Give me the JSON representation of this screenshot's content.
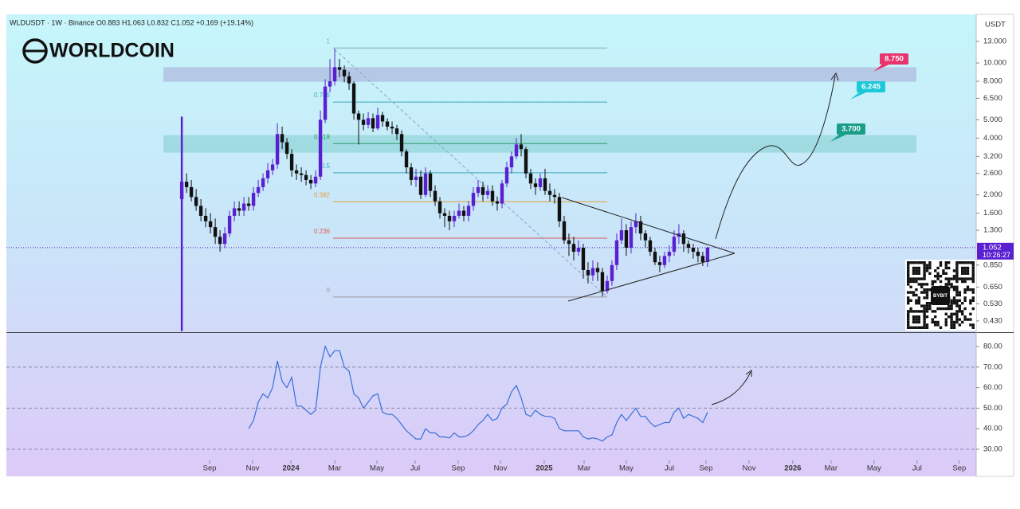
{
  "chart_data": {
    "type": "candlestick",
    "legend_text": "WLDUSDT · 1W · Binance  O0.883 H1.063 L0.832 C1.052 +0.169 (+19.14%)",
    "logo_text": "WORLDCOIN",
    "currency": "USDT",
    "log_scale": true,
    "up_color": "#5a1fd1",
    "down_color": "#111111",
    "ylim": [
      0.375,
      18.1
    ],
    "yticks": [
      {
        "value": 13,
        "label": "13.000"
      },
      {
        "value": 10,
        "label": "10.000"
      },
      {
        "value": 8,
        "label": "8.000"
      },
      {
        "value": 6.5,
        "label": "6.500"
      },
      {
        "value": 5,
        "label": "5.000"
      },
      {
        "value": 4,
        "label": "4.000"
      },
      {
        "value": 3.2,
        "label": "3.200"
      },
      {
        "value": 2.6,
        "label": "2.600"
      },
      {
        "value": 2,
        "label": "2.000"
      },
      {
        "value": 1.6,
        "label": "1.600"
      },
      {
        "value": 1.3,
        "label": "1.300"
      },
      {
        "value": 0.85,
        "label": "0.850"
      },
      {
        "value": 0.65,
        "label": "0.650"
      },
      {
        "value": 0.53,
        "label": "0.530"
      },
      {
        "value": 0.43,
        "label": "0.430"
      }
    ],
    "xlim": [
      -36.7,
      166.2
    ],
    "xticks": [
      {
        "value": 5.83,
        "label": "Sep"
      },
      {
        "value": 14.83,
        "label": "Nov"
      },
      {
        "value": 22.83,
        "label": "2024"
      },
      {
        "value": 32,
        "label": "Mar"
      },
      {
        "value": 40.83,
        "label": "May"
      },
      {
        "value": 48.83,
        "label": "Jul"
      },
      {
        "value": 57.83,
        "label": "Sep"
      },
      {
        "value": 66.67,
        "label": "Nov"
      },
      {
        "value": 75.83,
        "label": "2025"
      },
      {
        "value": 84.17,
        "label": "Mar"
      },
      {
        "value": 93,
        "label": "May"
      },
      {
        "value": 102,
        "label": "Jul"
      },
      {
        "value": 109.67,
        "label": "Sep"
      },
      {
        "value": 118.67,
        "label": "Nov"
      },
      {
        "value": 127.83,
        "label": "2026"
      },
      {
        "value": 135.83,
        "label": "Mar"
      },
      {
        "value": 144.83,
        "label": "May"
      },
      {
        "value": 153.83,
        "label": "Jul"
      },
      {
        "value": 162.67,
        "label": "Sep"
      }
    ],
    "last_price": {
      "value": 1.052,
      "countdown": "10:26:27",
      "color": "#5a1fd1"
    },
    "candles": {
      "open": [
        1.9,
        2.35,
        2.2,
        1.95,
        1.75,
        1.55,
        1.45,
        1.35,
        1.2,
        1.1,
        1.25,
        1.55,
        1.7,
        1.65,
        1.8,
        1.75,
        2.05,
        2.2,
        2.45,
        2.7,
        2.9,
        4.2,
        3.8,
        3.3,
        2.7,
        2.6,
        2.55,
        2.4,
        2.3,
        2.5,
        5.0,
        7.5,
        8.0,
        9.5,
        9.2,
        8.5,
        7.8,
        5.4,
        5.0,
        4.7,
        5.1,
        4.5,
        5.3,
        4.9,
        4.6,
        4.5,
        4.2,
        3.4,
        2.8,
        2.4,
        2.5,
        2.0,
        2.6,
        2.1,
        1.85,
        1.6,
        1.55,
        1.45,
        1.55,
        1.65,
        1.55,
        1.75,
        2.05,
        2.2,
        2.0,
        2.1,
        1.85,
        1.8,
        2.3,
        2.8,
        3.2,
        3.7,
        3.5,
        2.6,
        2.3,
        2.2,
        2.45,
        2.1,
        2.0,
        1.95,
        1.45,
        1.15,
        1.1,
        1.0,
        1.05,
        0.8,
        0.75,
        0.82,
        0.78,
        0.62,
        0.7,
        0.85,
        1.15,
        1.3,
        1.05,
        1.35,
        1.45,
        1.25,
        1.15,
        1.0,
        0.88,
        0.85,
        0.95,
        1.0,
        1.2,
        1.25,
        1.1,
        1.05,
        1.0,
        0.95,
        0.883
      ],
      "high": [
        5.2,
        2.6,
        2.4,
        2.15,
        1.9,
        1.7,
        1.6,
        1.5,
        1.3,
        1.35,
        1.65,
        1.85,
        1.85,
        1.95,
        1.95,
        2.2,
        2.4,
        2.6,
        2.95,
        3.1,
        4.8,
        4.6,
        4.0,
        3.5,
        2.9,
        2.8,
        2.7,
        2.55,
        2.7,
        5.6,
        8.2,
        10.5,
        11.9,
        10.5,
        9.7,
        9.0,
        8.0,
        5.6,
        5.4,
        5.5,
        5.4,
        5.8,
        5.5,
        5.1,
        4.9,
        4.7,
        4.4,
        3.5,
        2.95,
        2.75,
        2.7,
        2.8,
        2.7,
        2.25,
        1.95,
        1.7,
        1.65,
        1.65,
        1.8,
        1.75,
        1.85,
        2.2,
        2.4,
        2.35,
        2.25,
        2.25,
        1.95,
        2.4,
        3.0,
        3.4,
        4.0,
        4.2,
        3.6,
        2.75,
        2.45,
        2.6,
        2.75,
        2.3,
        2.15,
        2.05,
        1.55,
        1.25,
        1.2,
        1.15,
        1.1,
        0.88,
        0.9,
        0.88,
        0.82,
        0.75,
        0.9,
        1.25,
        1.5,
        1.4,
        1.45,
        1.6,
        1.55,
        1.3,
        1.2,
        1.05,
        0.95,
        1.0,
        1.08,
        1.3,
        1.4,
        1.3,
        1.15,
        1.1,
        1.05,
        1.0,
        1.063
      ],
      "low": [
        0.38,
        2.05,
        1.85,
        1.65,
        1.45,
        1.35,
        1.25,
        1.1,
        1.0,
        1.05,
        1.2,
        1.45,
        1.55,
        1.55,
        1.65,
        1.65,
        1.95,
        2.1,
        2.3,
        2.55,
        2.75,
        3.5,
        3.1,
        2.5,
        2.4,
        2.35,
        2.25,
        2.15,
        2.2,
        2.4,
        4.8,
        7.0,
        7.6,
        8.4,
        7.9,
        7.2,
        5.0,
        3.7,
        4.4,
        4.5,
        4.3,
        4.4,
        4.6,
        4.4,
        4.2,
        3.9,
        3.2,
        2.6,
        2.25,
        2.2,
        1.9,
        1.95,
        1.95,
        1.75,
        1.5,
        1.35,
        1.3,
        1.35,
        1.5,
        1.45,
        1.45,
        1.65,
        1.95,
        1.85,
        1.9,
        1.75,
        1.65,
        1.7,
        2.2,
        2.6,
        3.1,
        3.2,
        2.45,
        2.15,
        2.0,
        2.1,
        2.0,
        1.85,
        1.8,
        1.35,
        1.1,
        0.95,
        0.9,
        0.95,
        0.72,
        0.68,
        0.7,
        0.7,
        0.58,
        0.6,
        0.66,
        0.8,
        1.1,
        0.95,
        0.98,
        1.25,
        1.15,
        1.05,
        0.95,
        0.85,
        0.78,
        0.82,
        0.88,
        0.95,
        1.1,
        1.0,
        0.98,
        0.92,
        0.88,
        0.84,
        0.832
      ],
      "close": [
        2.35,
        2.2,
        1.95,
        1.75,
        1.55,
        1.45,
        1.35,
        1.2,
        1.1,
        1.25,
        1.55,
        1.7,
        1.65,
        1.8,
        1.75,
        2.05,
        2.2,
        2.45,
        2.7,
        2.9,
        4.2,
        3.8,
        3.3,
        2.7,
        2.6,
        2.55,
        2.4,
        2.3,
        2.5,
        5.0,
        7.5,
        8.0,
        9.5,
        9.2,
        8.5,
        7.8,
        5.4,
        5.0,
        4.7,
        5.1,
        4.5,
        5.3,
        4.9,
        4.6,
        4.5,
        4.2,
        3.4,
        2.8,
        2.4,
        2.5,
        2.0,
        2.6,
        2.1,
        1.85,
        1.6,
        1.55,
        1.45,
        1.55,
        1.65,
        1.55,
        1.75,
        2.05,
        2.2,
        2.0,
        2.1,
        1.85,
        1.8,
        2.3,
        2.8,
        3.2,
        3.7,
        3.5,
        2.6,
        2.3,
        2.2,
        2.45,
        2.1,
        2.0,
        1.95,
        1.45,
        1.15,
        1.1,
        1.0,
        1.05,
        0.8,
        0.75,
        0.82,
        0.78,
        0.62,
        0.7,
        0.85,
        1.15,
        1.3,
        1.05,
        1.35,
        1.45,
        1.25,
        1.15,
        1.0,
        0.88,
        0.85,
        0.95,
        1.0,
        1.2,
        1.25,
        1.1,
        1.05,
        1.0,
        0.95,
        0.883,
        1.052
      ]
    },
    "fib_levels": [
      {
        "level": 1,
        "price": 12.0,
        "color": "#7fb0a8"
      },
      {
        "level": 0.786,
        "price": 6.21,
        "color": "#3aa8b8"
      },
      {
        "level": 0.618,
        "price": 3.74,
        "color": "#2e9e6a"
      },
      {
        "level": 0.5,
        "price": 2.62,
        "color": "#3aa8b8"
      },
      {
        "level": 0.382,
        "price": 1.84,
        "color": "#e0a040"
      },
      {
        "level": 0.236,
        "price": 1.18,
        "color": "#e05a5a"
      },
      {
        "level": 0,
        "price": 0.576,
        "color": "#999999"
      }
    ],
    "zones": [
      {
        "low": 7.95,
        "high": 9.5,
        "color": "rgba(160,150,205,0.45)"
      },
      {
        "low": 3.35,
        "high": 4.15,
        "color": "rgba(90,190,180,0.35)"
      }
    ],
    "targets": [
      {
        "label": "8.750",
        "color": "#e8336d"
      },
      {
        "label": "6.245",
        "color": "#1ec8d8"
      },
      {
        "label": "3.700",
        "color": "#1a9e8a"
      }
    ],
    "qr_caption": "BYBIT",
    "rsi": {
      "color": "#3a6fd8",
      "ylim": [
        25.35,
        86.6
      ],
      "yticks": [
        {
          "value": 80,
          "label": "80.00"
        },
        {
          "value": 70,
          "label": "70.00"
        },
        {
          "value": 60,
          "label": "60.00"
        },
        {
          "value": 50,
          "label": "50.00"
        },
        {
          "value": 40,
          "label": "40.00"
        },
        {
          "value": 30,
          "label": "30.00"
        }
      ],
      "levels": [
        70,
        50,
        30
      ],
      "values": [
        null,
        null,
        null,
        null,
        null,
        null,
        null,
        null,
        null,
        null,
        null,
        null,
        null,
        null,
        40,
        44,
        53,
        57,
        55,
        60,
        73,
        63,
        60,
        65,
        51,
        51,
        49,
        47,
        49,
        70,
        80,
        75,
        78,
        78,
        70,
        68,
        57,
        55,
        50,
        53,
        56,
        57,
        48,
        47,
        47,
        45,
        42,
        39,
        37,
        35,
        35,
        40,
        38,
        38,
        36,
        36,
        35.5,
        38,
        36,
        36,
        37,
        39,
        42,
        44,
        47,
        44,
        45,
        50,
        52,
        58,
        61,
        55,
        47,
        46,
        49,
        47,
        46,
        46,
        45,
        40,
        39,
        39,
        39,
        39,
        36,
        35,
        35.5,
        35,
        34,
        36,
        37,
        43,
        47,
        44,
        47,
        50,
        46,
        46,
        43,
        41,
        42,
        43,
        43,
        48,
        50,
        45,
        47,
        46,
        45,
        43,
        48
      ]
    }
  }
}
